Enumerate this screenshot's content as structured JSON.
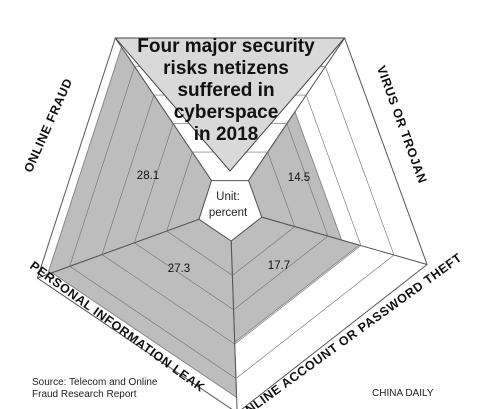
{
  "chart_data": {
    "type": "radar",
    "title_lines": [
      "Four major security",
      "risks netizens",
      "suffered in",
      "cyberspace",
      "in 2018"
    ],
    "unit_label": "Unit:",
    "unit_value": "percent",
    "categories": [
      "ONLINE FRAUD",
      "VIRUS OR TROJAN",
      "ONLINE ACCOUNT OR PASSWORD THEFT",
      "PERSONAL INFORMATION LEAK"
    ],
    "values": [
      28.1,
      14.5,
      17.7,
      27.3
    ],
    "value_labels": [
      "28.1",
      "14.5",
      "17.7",
      "27.3"
    ],
    "colors": {
      "fill": "#bdbdbd",
      "border": "#8a8a8a",
      "grid": "#555555",
      "title_box": "#d9d9d9"
    }
  },
  "footer": {
    "source_line1": "Source: Telecom and Online",
    "source_line2": "Fraud Research Report",
    "credit": "CHINA DAILY"
  }
}
